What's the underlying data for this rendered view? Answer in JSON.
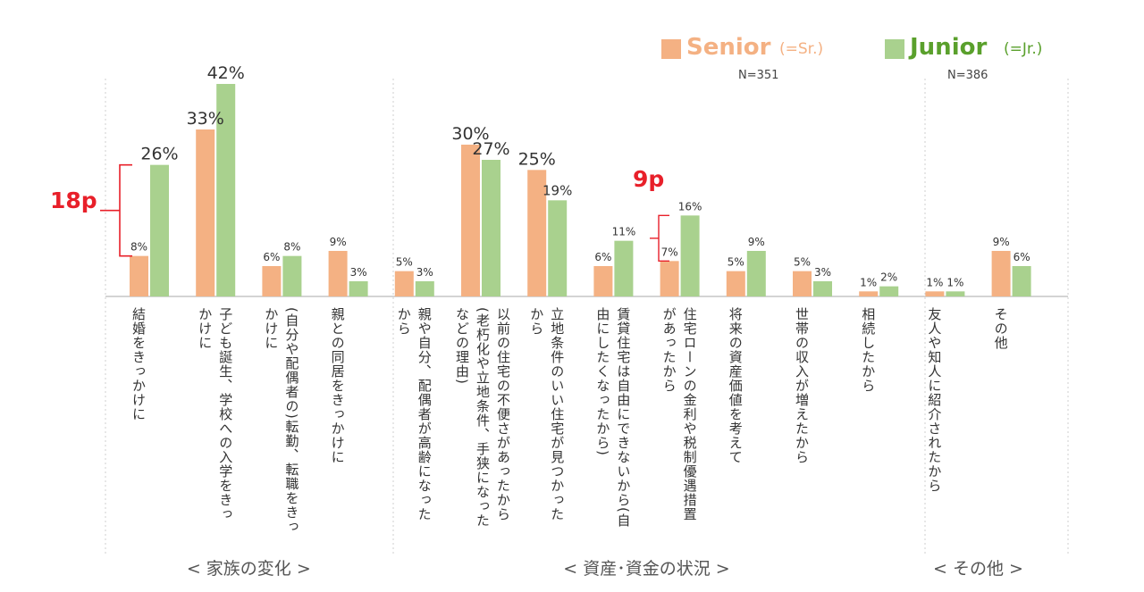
{
  "colors": {
    "senior": "#f4b183",
    "junior": "#a9d18e",
    "annotation": "#e8202a",
    "axis": "#bbbbbb"
  },
  "legend": {
    "senior": {
      "name": "Senior",
      "abbr": "(=Sr.)",
      "n": "N=351"
    },
    "junior": {
      "name": "Junior",
      "abbr": "(=Jr.)",
      "n": "N=386"
    }
  },
  "annotations": {
    "first": "18p",
    "second": "9p"
  },
  "chart_data": {
    "type": "bar",
    "title": "",
    "xlabel": "",
    "ylabel": "",
    "ylim": [
      0,
      45
    ],
    "legend_position": "top-right",
    "grid": false,
    "categories": [
      "結婚をきっかけに",
      "子ども誕生、学校への入学をきっかけに",
      "(自分や配偶者の)転勤、転職をきっかけに",
      "親との同居をきっかけに",
      "親や自分、配偶者が高齢になったから",
      "以前の住宅の不便さがあったから(老朽化や立地条件、手狭になったなどの理由)",
      "立地条件のいい住宅が見つかったから",
      "賃貸住宅は自由にできないから(自由にしたくなったから)",
      "住宅ローンの金利や税制優遇措置があったから",
      "将来の資産価値を考えて",
      "世帯の収入が増えたから",
      "相続したから",
      "友人や知人に紹介されたから",
      "その他"
    ],
    "series": [
      {
        "name": "Senior",
        "values": [
          8,
          33,
          6,
          9,
          5,
          30,
          25,
          6,
          7,
          5,
          5,
          1,
          1,
          9
        ],
        "labels": [
          "8%",
          "33%",
          "6%",
          "9%",
          "5%",
          "30%",
          "25%",
          "6%",
          "7%",
          "5%",
          "5%",
          "1%",
          "1%",
          "9%"
        ]
      },
      {
        "name": "Junior",
        "values": [
          26,
          42,
          8,
          3,
          3,
          27,
          19,
          11,
          16,
          9,
          3,
          2,
          1,
          6
        ],
        "labels": [
          "26%",
          "42%",
          "8%",
          "3%",
          "3%",
          "27%",
          "19%",
          "11%",
          "16%",
          "9%",
          "3%",
          "2%",
          "1%",
          "6%"
        ]
      }
    ],
    "groups": [
      {
        "label": "< 家族の変化 >",
        "from": 0,
        "to": 3
      },
      {
        "label": "< 資産･資金の状況 >",
        "from": 4,
        "to": 11
      },
      {
        "label": "< その他 >",
        "from": 12,
        "to": 13
      }
    ]
  }
}
